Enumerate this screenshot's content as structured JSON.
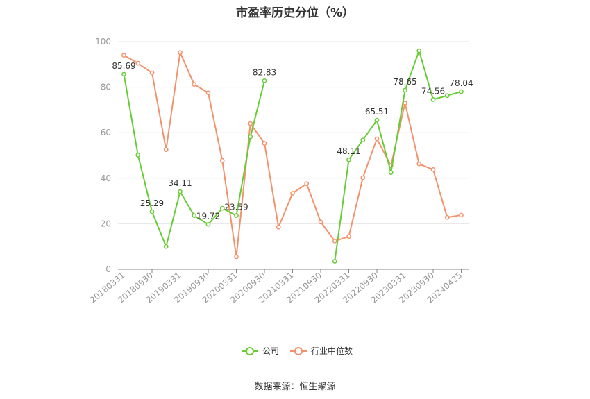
{
  "title": "市盈率历史分位（%）",
  "source": "数据来源：恒生聚源",
  "colors": {
    "company": "#66cc33",
    "industry": "#f4916b",
    "grid": "#e6e6e6",
    "axis": "#888888",
    "tick": "#999999"
  },
  "legend": {
    "position": "bottom"
  },
  "chart_data": {
    "type": "line",
    "ylim": [
      0,
      100
    ],
    "yticks": [
      0,
      20,
      40,
      60,
      80,
      100
    ],
    "grid": true,
    "legend_position": "bottom",
    "xlabel": "",
    "ylabel": "",
    "x": [
      "20180331",
      "20180630",
      "20180930",
      "20181231",
      "20190331",
      "20190630",
      "20190930",
      "20191231",
      "20200331",
      "20200630",
      "20200930",
      "20201231",
      "20210331",
      "20210630",
      "20210930",
      "20211231",
      "20220331",
      "20220630",
      "20220930",
      "20221231",
      "20230331",
      "20230630",
      "20230930",
      "20231231",
      "20240425"
    ],
    "xtick_labels": [
      "20180331",
      "20180930",
      "20190331",
      "20190930",
      "20200331",
      "20200930",
      "20210331",
      "20210930",
      "20220331",
      "20220930",
      "20230331",
      "20230930",
      "20240425"
    ],
    "series": [
      {
        "name": "公司",
        "color": "#66cc33",
        "values": [
          85.69,
          50.2,
          25.29,
          10.0,
          34.11,
          23.6,
          19.72,
          26.8,
          23.59,
          58.2,
          82.83,
          null,
          null,
          null,
          null,
          3.5,
          48.11,
          56.8,
          65.51,
          42.5,
          78.65,
          96.0,
          74.56,
          76.3,
          78.04
        ],
        "labels": [
          {
            "index": 0,
            "text": "85.69"
          },
          {
            "index": 2,
            "text": "25.29"
          },
          {
            "index": 4,
            "text": "34.11"
          },
          {
            "index": 6,
            "text": "19.72"
          },
          {
            "index": 8,
            "text": "23.59"
          },
          {
            "index": 10,
            "text": "82.83"
          },
          {
            "index": 16,
            "text": "48.11"
          },
          {
            "index": 18,
            "text": "65.51"
          },
          {
            "index": 20,
            "text": "78.65"
          },
          {
            "index": 22,
            "text": "74.56"
          },
          {
            "index": 24,
            "text": "78.04"
          }
        ]
      },
      {
        "name": "行业中位数",
        "color": "#f4916b",
        "values": [
          94.0,
          90.5,
          86.3,
          52.5,
          95.2,
          81.2,
          77.5,
          47.8,
          5.5,
          64.0,
          55.3,
          18.5,
          33.4,
          37.6,
          20.8,
          12.4,
          14.4,
          40.2,
          57.3,
          45.5,
          73.0,
          46.3,
          43.8,
          22.8,
          23.8
        ]
      }
    ]
  }
}
